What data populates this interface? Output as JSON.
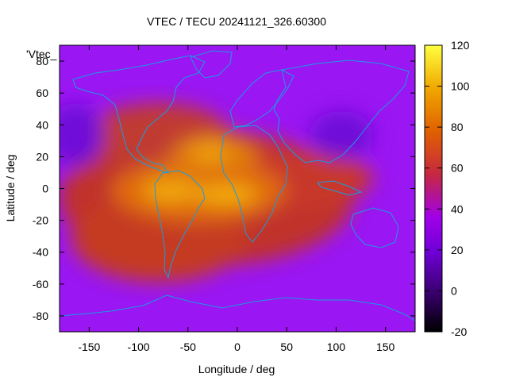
{
  "chart_data": {
    "type": "heatmap",
    "title": "VTEC / TECU 20241121_326.60300",
    "xlabel": "Longitude / deg",
    "ylabel": "Latitude / deg",
    "series_key": "'Vtec_",
    "xlim": [
      -180,
      180
    ],
    "ylim": [
      -90,
      90
    ],
    "x_ticks": [
      -150,
      -100,
      -50,
      0,
      50,
      100,
      150
    ],
    "y_ticks": [
      -80,
      -60,
      -40,
      -20,
      0,
      20,
      40,
      60,
      80
    ],
    "colorbar": {
      "range": [
        -20,
        120
      ],
      "ticks": [
        -20,
        0,
        20,
        40,
        60,
        80,
        100,
        120
      ],
      "palette": [
        "#000000",
        "#3a0070",
        "#7000d8",
        "#a000e8",
        "#c62840",
        "#e06000",
        "#f0a800",
        "#ffff40"
      ]
    },
    "enhancements": [
      {
        "name": "south-america-peak",
        "lon": -60,
        "lat": -5,
        "vtec": 95
      },
      {
        "name": "africa-peak",
        "lon": -15,
        "lat": -5,
        "vtec": 105
      },
      {
        "name": "north-africa-peak",
        "lon": -30,
        "lat": 20,
        "vtec": 100
      }
    ],
    "background_vtec": 20,
    "map_outline": "continents"
  }
}
